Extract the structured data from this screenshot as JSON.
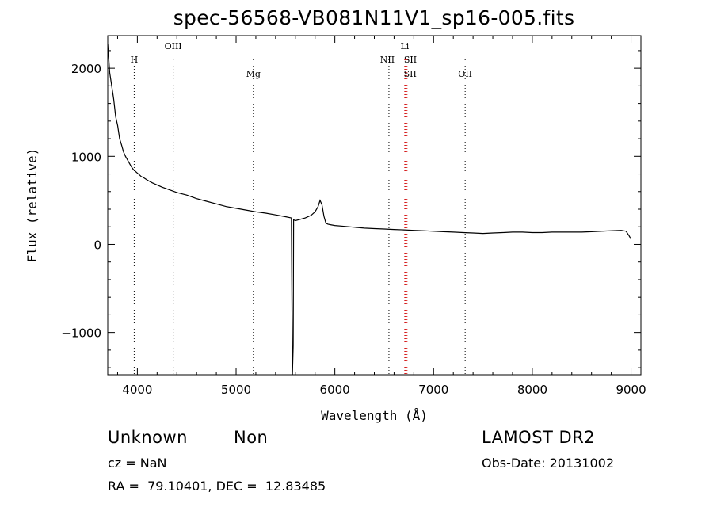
{
  "chart_data": {
    "type": "line",
    "title": "spec-56568-VB081N11V1_sp16-005.fits",
    "xlabel": "Wavelength (Å)",
    "ylabel": "Flux (relative)",
    "xlim": [
      3700,
      9100
    ],
    "ylim": [
      -1480,
      2370
    ],
    "xticks": [
      4000,
      5000,
      6000,
      7000,
      8000,
      9000
    ],
    "xtick_labels": [
      "4000",
      "5000",
      "6000",
      "7000",
      "8000",
      "9000"
    ],
    "yticks": [
      -1000,
      0,
      1000,
      2000
    ],
    "ytick_labels": [
      "−1000",
      "0",
      "1000",
      "2000"
    ],
    "grid": false,
    "series": [
      {
        "x": [
          3700,
          3720,
          3740,
          3760,
          3780,
          3800,
          3820,
          3840,
          3860,
          3880,
          3900,
          3920,
          3940,
          3960,
          3980,
          4000,
          4020,
          4040,
          4060,
          4080,
          4100,
          4150,
          4200,
          4250,
          4300,
          4350,
          4400,
          4500,
          4600,
          4700,
          4800,
          4900,
          5000,
          5100,
          5200,
          5300,
          5400,
          5500,
          5560,
          5570,
          5578,
          5582,
          5590,
          5600,
          5700,
          5760,
          5800,
          5830,
          5850,
          5870,
          5890,
          5910,
          5930,
          5950,
          6000,
          6100,
          6200,
          6300,
          6400,
          6500,
          6600,
          6700,
          6800,
          6900,
          7000,
          7100,
          7200,
          7300,
          7400,
          7500,
          7600,
          7700,
          7800,
          7900,
          8000,
          8100,
          8200,
          8300,
          8400,
          8500,
          8600,
          8700,
          8800,
          8900,
          8950,
          8980,
          9000
        ],
        "y": [
          2280,
          1950,
          1800,
          1650,
          1450,
          1350,
          1200,
          1130,
          1050,
          1000,
          960,
          920,
          880,
          850,
          830,
          810,
          790,
          770,
          760,
          745,
          730,
          700,
          675,
          650,
          630,
          610,
          590,
          560,
          520,
          490,
          460,
          430,
          410,
          390,
          370,
          355,
          335,
          315,
          300,
          -1480,
          -1150,
          280,
          275,
          270,
          300,
          330,
          370,
          430,
          500,
          450,
          320,
          240,
          230,
          225,
          215,
          205,
          195,
          185,
          180,
          175,
          170,
          165,
          160,
          155,
          150,
          145,
          140,
          135,
          130,
          125,
          130,
          135,
          140,
          140,
          135,
          135,
          140,
          140,
          140,
          140,
          145,
          150,
          155,
          160,
          150,
          100,
          60
        ]
      }
    ],
    "lines": [
      {
        "x": 3968,
        "label": "H"
      },
      {
        "x": 4363,
        "label": "OIII"
      },
      {
        "x": 5175,
        "label": "Mg"
      },
      {
        "x": 6548,
        "label": "NII"
      },
      {
        "x": 6708,
        "label": "Li"
      },
      {
        "x": 6717,
        "label": "SII"
      },
      {
        "x": 6731,
        "label": "SII"
      },
      {
        "x": 7320,
        "label": "OII"
      }
    ],
    "colors": {
      "spectrum": "#000000",
      "lines": "#000000",
      "lines_highlight": "#d00000"
    }
  },
  "header": {
    "title": "spec-56568-VB081N11V1_sp16-005.fits"
  },
  "footer": {
    "class": "Unknown",
    "subclass": "Non",
    "catalog": "LAMOST DR2",
    "cz": "cz = NaN",
    "obs_date": "Obs-Date: 20131002",
    "radec": "RA =  79.10401, DEC =  12.83485"
  }
}
